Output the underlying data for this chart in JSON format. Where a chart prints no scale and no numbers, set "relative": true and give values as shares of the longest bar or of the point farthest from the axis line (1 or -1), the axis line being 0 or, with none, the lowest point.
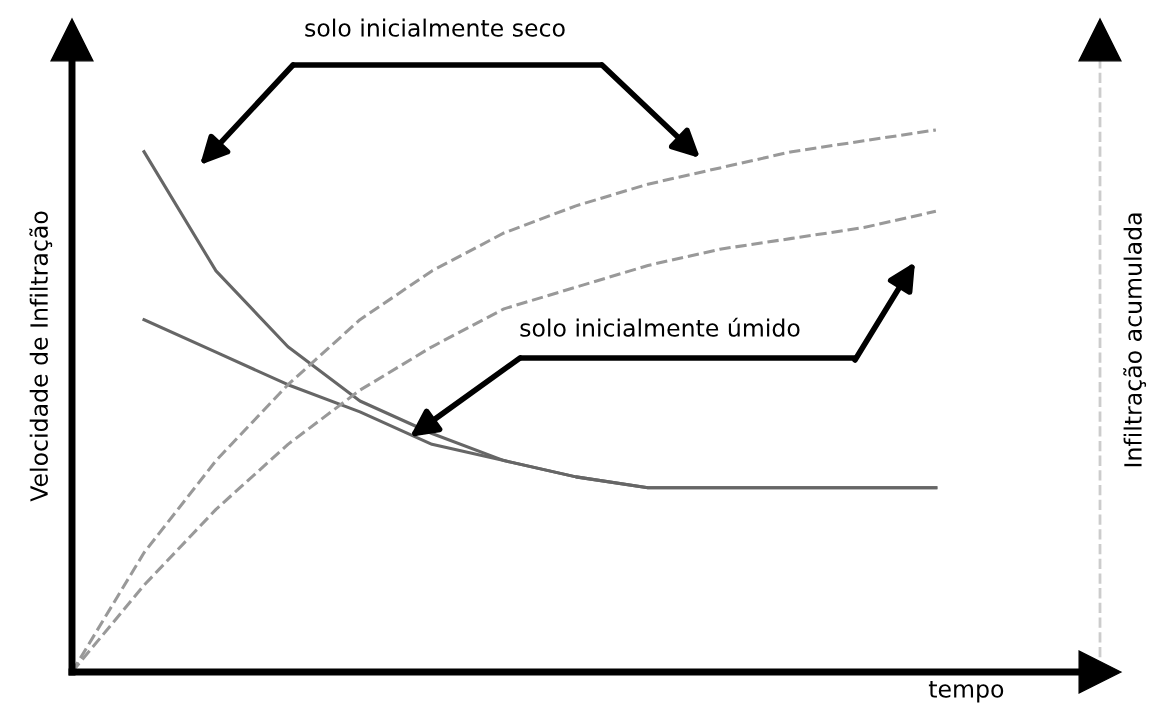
{
  "chart_data": {
    "type": "line",
    "relative": true,
    "xlabel": "tempo",
    "ylabel": "Velocidade de Infiltração",
    "categories": [
      null,
      null,
      null,
      null,
      null,
      null,
      null,
      null,
      null,
      null,
      null,
      null,
      null
    ],
    "series": [
      {
        "color": "#666666",
        "line_style": "solid",
        "values": [
          null,
          0.96,
          0.74,
          0.6,
          0.5,
          0.44,
          0.39,
          0.36,
          0.34,
          0.34,
          0.34,
          0.34,
          0.34
        ]
      },
      {
        "color": "#666666",
        "line_style": "solid",
        "values": [
          null,
          0.65,
          0.59,
          0.53,
          0.48,
          0.42,
          0.39,
          0.36,
          0.34,
          0.34,
          0.34,
          0.34,
          0.34
        ]
      },
      {
        "color": "#999999",
        "line_style": "dashed",
        "values": [
          0,
          0.22,
          0.39,
          0.53,
          0.65,
          0.74,
          0.81,
          0.86,
          0.9,
          0.93,
          0.96,
          0.98,
          1.0
        ]
      },
      {
        "color": "#999999",
        "line_style": "dashed",
        "values": [
          0,
          0.16,
          0.3,
          0.42,
          0.52,
          0.6,
          0.67,
          0.71,
          0.75,
          0.78,
          0.8,
          0.82,
          0.85
        ]
      }
    ],
    "annotations": [
      "solo inicialmente seco",
      "solo inicialmente úmido",
      "Infiltração acumulada"
    ]
  }
}
